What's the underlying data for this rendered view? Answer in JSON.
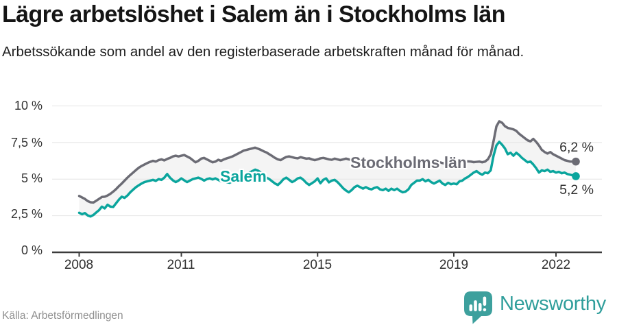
{
  "header": {
    "title": "Lägre arbetslöshet i Salem än i Stockholms län",
    "subtitle": "Arbetssökande som andel av den registerbaserade arbetskraften månad för månad."
  },
  "chart_data": {
    "type": "line",
    "title": "Lägre arbetslöshet i Salem än i Stockholms län",
    "x_start": "2008-01",
    "x_end": "2022-08",
    "x_tick_labels": [
      "2008",
      "2011",
      "2015",
      "2019",
      "2022"
    ],
    "x_tick_years": [
      2008,
      2011,
      2015,
      2019,
      2022
    ],
    "y_tick_labels": [
      "0 %",
      "2,5 %",
      "5 %",
      "7,5 %",
      "10 %"
    ],
    "y_tick_values": [
      0,
      2.5,
      5,
      7.5,
      10
    ],
    "ylim": [
      0,
      10
    ],
    "unit": "%",
    "grid": true,
    "legend_position": "inline-labels",
    "band_fill_between_series": "#f4f4f4",
    "series": [
      {
        "name": "Stockholms län",
        "color": "#6c6c75",
        "end_label": "6,2 %",
        "end_value": 6.2,
        "values": [
          3.85,
          3.75,
          3.65,
          3.5,
          3.42,
          3.4,
          3.52,
          3.65,
          3.78,
          3.8,
          3.88,
          4.0,
          4.15,
          4.32,
          4.52,
          4.7,
          4.9,
          5.1,
          5.28,
          5.45,
          5.62,
          5.78,
          5.9,
          6.0,
          6.1,
          6.18,
          6.25,
          6.2,
          6.3,
          6.35,
          6.28,
          6.38,
          6.45,
          6.55,
          6.6,
          6.55,
          6.6,
          6.65,
          6.55,
          6.45,
          6.3,
          6.15,
          6.25,
          6.4,
          6.45,
          6.35,
          6.25,
          6.15,
          6.2,
          6.32,
          6.25,
          6.35,
          6.42,
          6.48,
          6.55,
          6.65,
          6.75,
          6.85,
          6.95,
          7.0,
          7.05,
          7.1,
          7.15,
          7.08,
          7.0,
          6.9,
          6.82,
          6.7,
          6.58,
          6.45,
          6.35,
          6.3,
          6.42,
          6.52,
          6.55,
          6.5,
          6.45,
          6.42,
          6.5,
          6.45,
          6.4,
          6.42,
          6.35,
          6.3,
          6.35,
          6.42,
          6.45,
          6.4,
          6.35,
          6.32,
          6.4,
          6.35,
          6.3,
          6.35,
          6.4,
          6.35,
          6.3,
          6.25,
          6.3,
          6.25,
          6.2,
          6.25,
          6.3,
          6.25,
          6.2,
          6.15,
          6.2,
          6.25,
          6.2,
          6.15,
          6.2,
          6.25,
          6.2,
          6.15,
          6.18,
          6.22,
          6.28,
          6.24,
          6.2,
          6.15,
          6.2,
          6.24,
          6.2,
          6.15,
          6.1,
          6.06,
          6.1,
          6.15,
          6.1,
          6.06,
          6.1,
          6.15,
          6.1,
          6.12,
          6.18,
          6.15,
          6.2,
          6.22,
          6.2,
          6.16,
          6.18,
          6.2,
          6.15,
          6.2,
          6.35,
          6.7,
          7.6,
          8.6,
          8.95,
          8.85,
          8.62,
          8.5,
          8.45,
          8.4,
          8.3,
          8.1,
          7.95,
          7.8,
          7.65,
          7.58,
          7.75,
          7.55,
          7.3,
          7.0,
          6.85,
          6.75,
          6.85,
          6.7,
          6.6,
          6.5,
          6.4,
          6.3,
          6.25,
          6.2,
          6.2,
          6.2
        ]
      },
      {
        "name": "Salem",
        "color": "#0ba59d",
        "end_label": "5,2 %",
        "end_value": 5.2,
        "values": [
          2.7,
          2.6,
          2.68,
          2.52,
          2.45,
          2.55,
          2.72,
          2.88,
          3.12,
          3.0,
          3.25,
          3.12,
          3.1,
          3.35,
          3.6,
          3.8,
          3.72,
          3.88,
          4.1,
          4.28,
          4.45,
          4.58,
          4.7,
          4.8,
          4.85,
          4.9,
          4.95,
          4.88,
          5.0,
          4.95,
          5.1,
          5.35,
          5.1,
          4.92,
          4.8,
          4.9,
          5.05,
          4.92,
          4.8,
          4.9,
          5.0,
          5.05,
          5.1,
          5.02,
          4.9,
          5.0,
          5.05,
          4.98,
          5.05,
          4.95,
          4.85,
          4.92,
          4.8,
          4.75,
          4.85,
          4.95,
          5.05,
          5.15,
          5.25,
          5.35,
          5.45,
          5.55,
          5.65,
          5.58,
          5.45,
          5.2,
          5.1,
          5.0,
          4.85,
          4.7,
          4.6,
          4.78,
          5.0,
          5.1,
          4.95,
          4.8,
          4.9,
          5.05,
          5.1,
          4.95,
          4.75,
          4.6,
          4.72,
          4.85,
          5.05,
          4.72,
          4.95,
          5.05,
          4.78,
          4.9,
          4.95,
          4.8,
          4.6,
          4.38,
          4.22,
          4.1,
          4.25,
          4.45,
          4.55,
          4.45,
          4.35,
          4.45,
          4.35,
          4.3,
          4.4,
          4.45,
          4.3,
          4.25,
          4.35,
          4.2,
          4.35,
          4.25,
          4.35,
          4.2,
          4.1,
          4.15,
          4.3,
          4.6,
          4.75,
          4.9,
          4.9,
          5.0,
          4.85,
          4.95,
          4.8,
          4.7,
          4.8,
          4.9,
          4.7,
          4.6,
          4.75,
          4.65,
          4.7,
          4.65,
          4.85,
          4.9,
          5.05,
          5.15,
          5.3,
          5.45,
          5.55,
          5.4,
          5.3,
          5.45,
          5.4,
          5.6,
          6.6,
          7.3,
          7.55,
          7.35,
          7.1,
          6.7,
          6.8,
          6.6,
          6.8,
          6.65,
          6.45,
          6.3,
          6.15,
          6.2,
          6.0,
          5.75,
          5.45,
          5.6,
          5.55,
          5.65,
          5.5,
          5.55,
          5.45,
          5.5,
          5.4,
          5.45,
          5.35,
          5.3,
          5.25,
          5.2
        ]
      }
    ]
  },
  "colors": {
    "accent_teal": "#0ba59d",
    "series_gray": "#6c6c75",
    "band_fill": "#f4f4f4",
    "gridline": "#e4e4e4",
    "axis_line": "#3b3b3b",
    "logo_teal": "#2f9e9b"
  },
  "footer": {
    "source": "Källa: Arbetsförmedlingen",
    "brand": "Newsworthy"
  }
}
